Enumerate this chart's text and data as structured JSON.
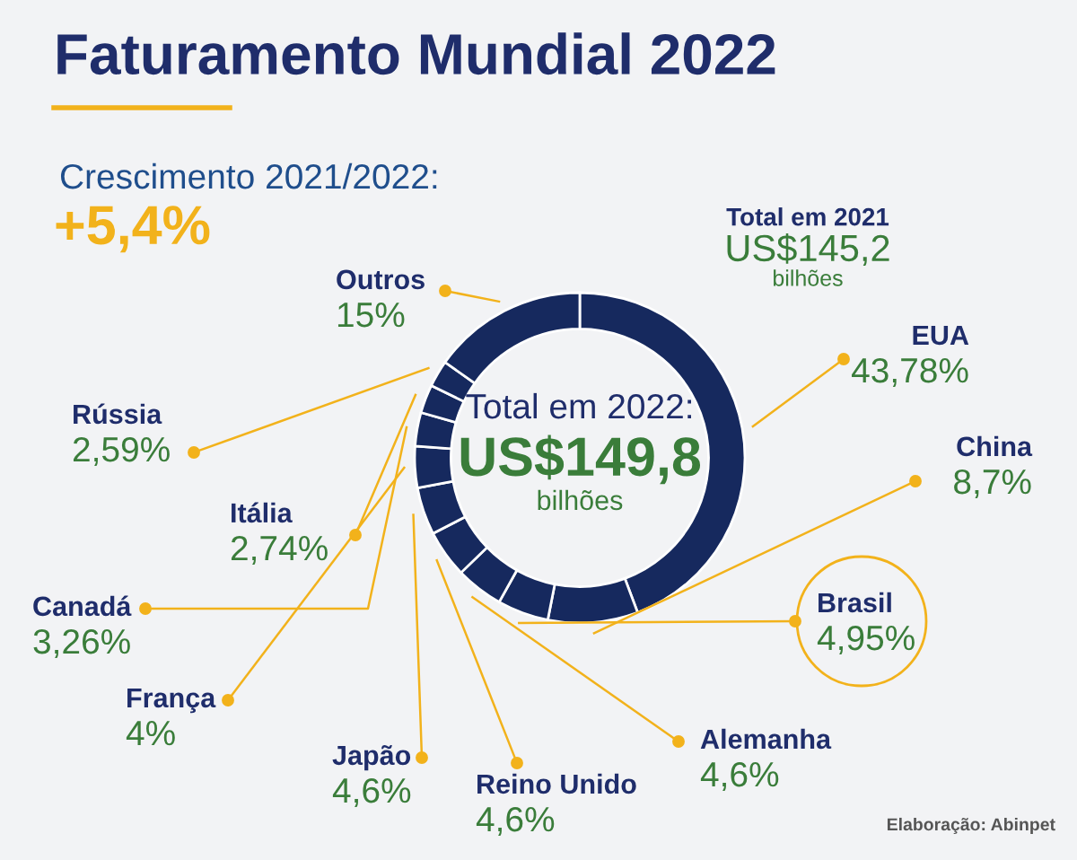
{
  "chart_data": {
    "type": "donut",
    "title": "Faturamento Mundial 2022",
    "categories": [
      "EUA",
      "China",
      "Brasil",
      "Alemanha",
      "Reino Unido",
      "Japão",
      "França",
      "Canadá",
      "Itália",
      "Rússia",
      "Outros"
    ],
    "values": [
      43.78,
      8.7,
      4.95,
      4.6,
      4.6,
      4.6,
      4,
      3.26,
      2.74,
      2.59,
      15
    ],
    "value_labels": [
      "43,78%",
      "8,7%",
      "4,95%",
      "4,6%",
      "4,6%",
      "4,6%",
      "4%",
      "3,26%",
      "2,74%",
      "2,59%",
      "15%"
    ],
    "colors": [
      "#16295e",
      "#16295e",
      "#16295e",
      "#16295e",
      "#16295e",
      "#16295e",
      "#16295e",
      "#16295e",
      "#16295e",
      "#16295e",
      "#16295e"
    ],
    "annotations": [
      "Crescimento 2021/2022:",
      "+5,4%",
      "Total em 2021",
      "US$145,2",
      "bilhões",
      "Total em 2022:",
      "US$149,8",
      "bilhões",
      "Elaboração: Abinpet"
    ]
  }
}
